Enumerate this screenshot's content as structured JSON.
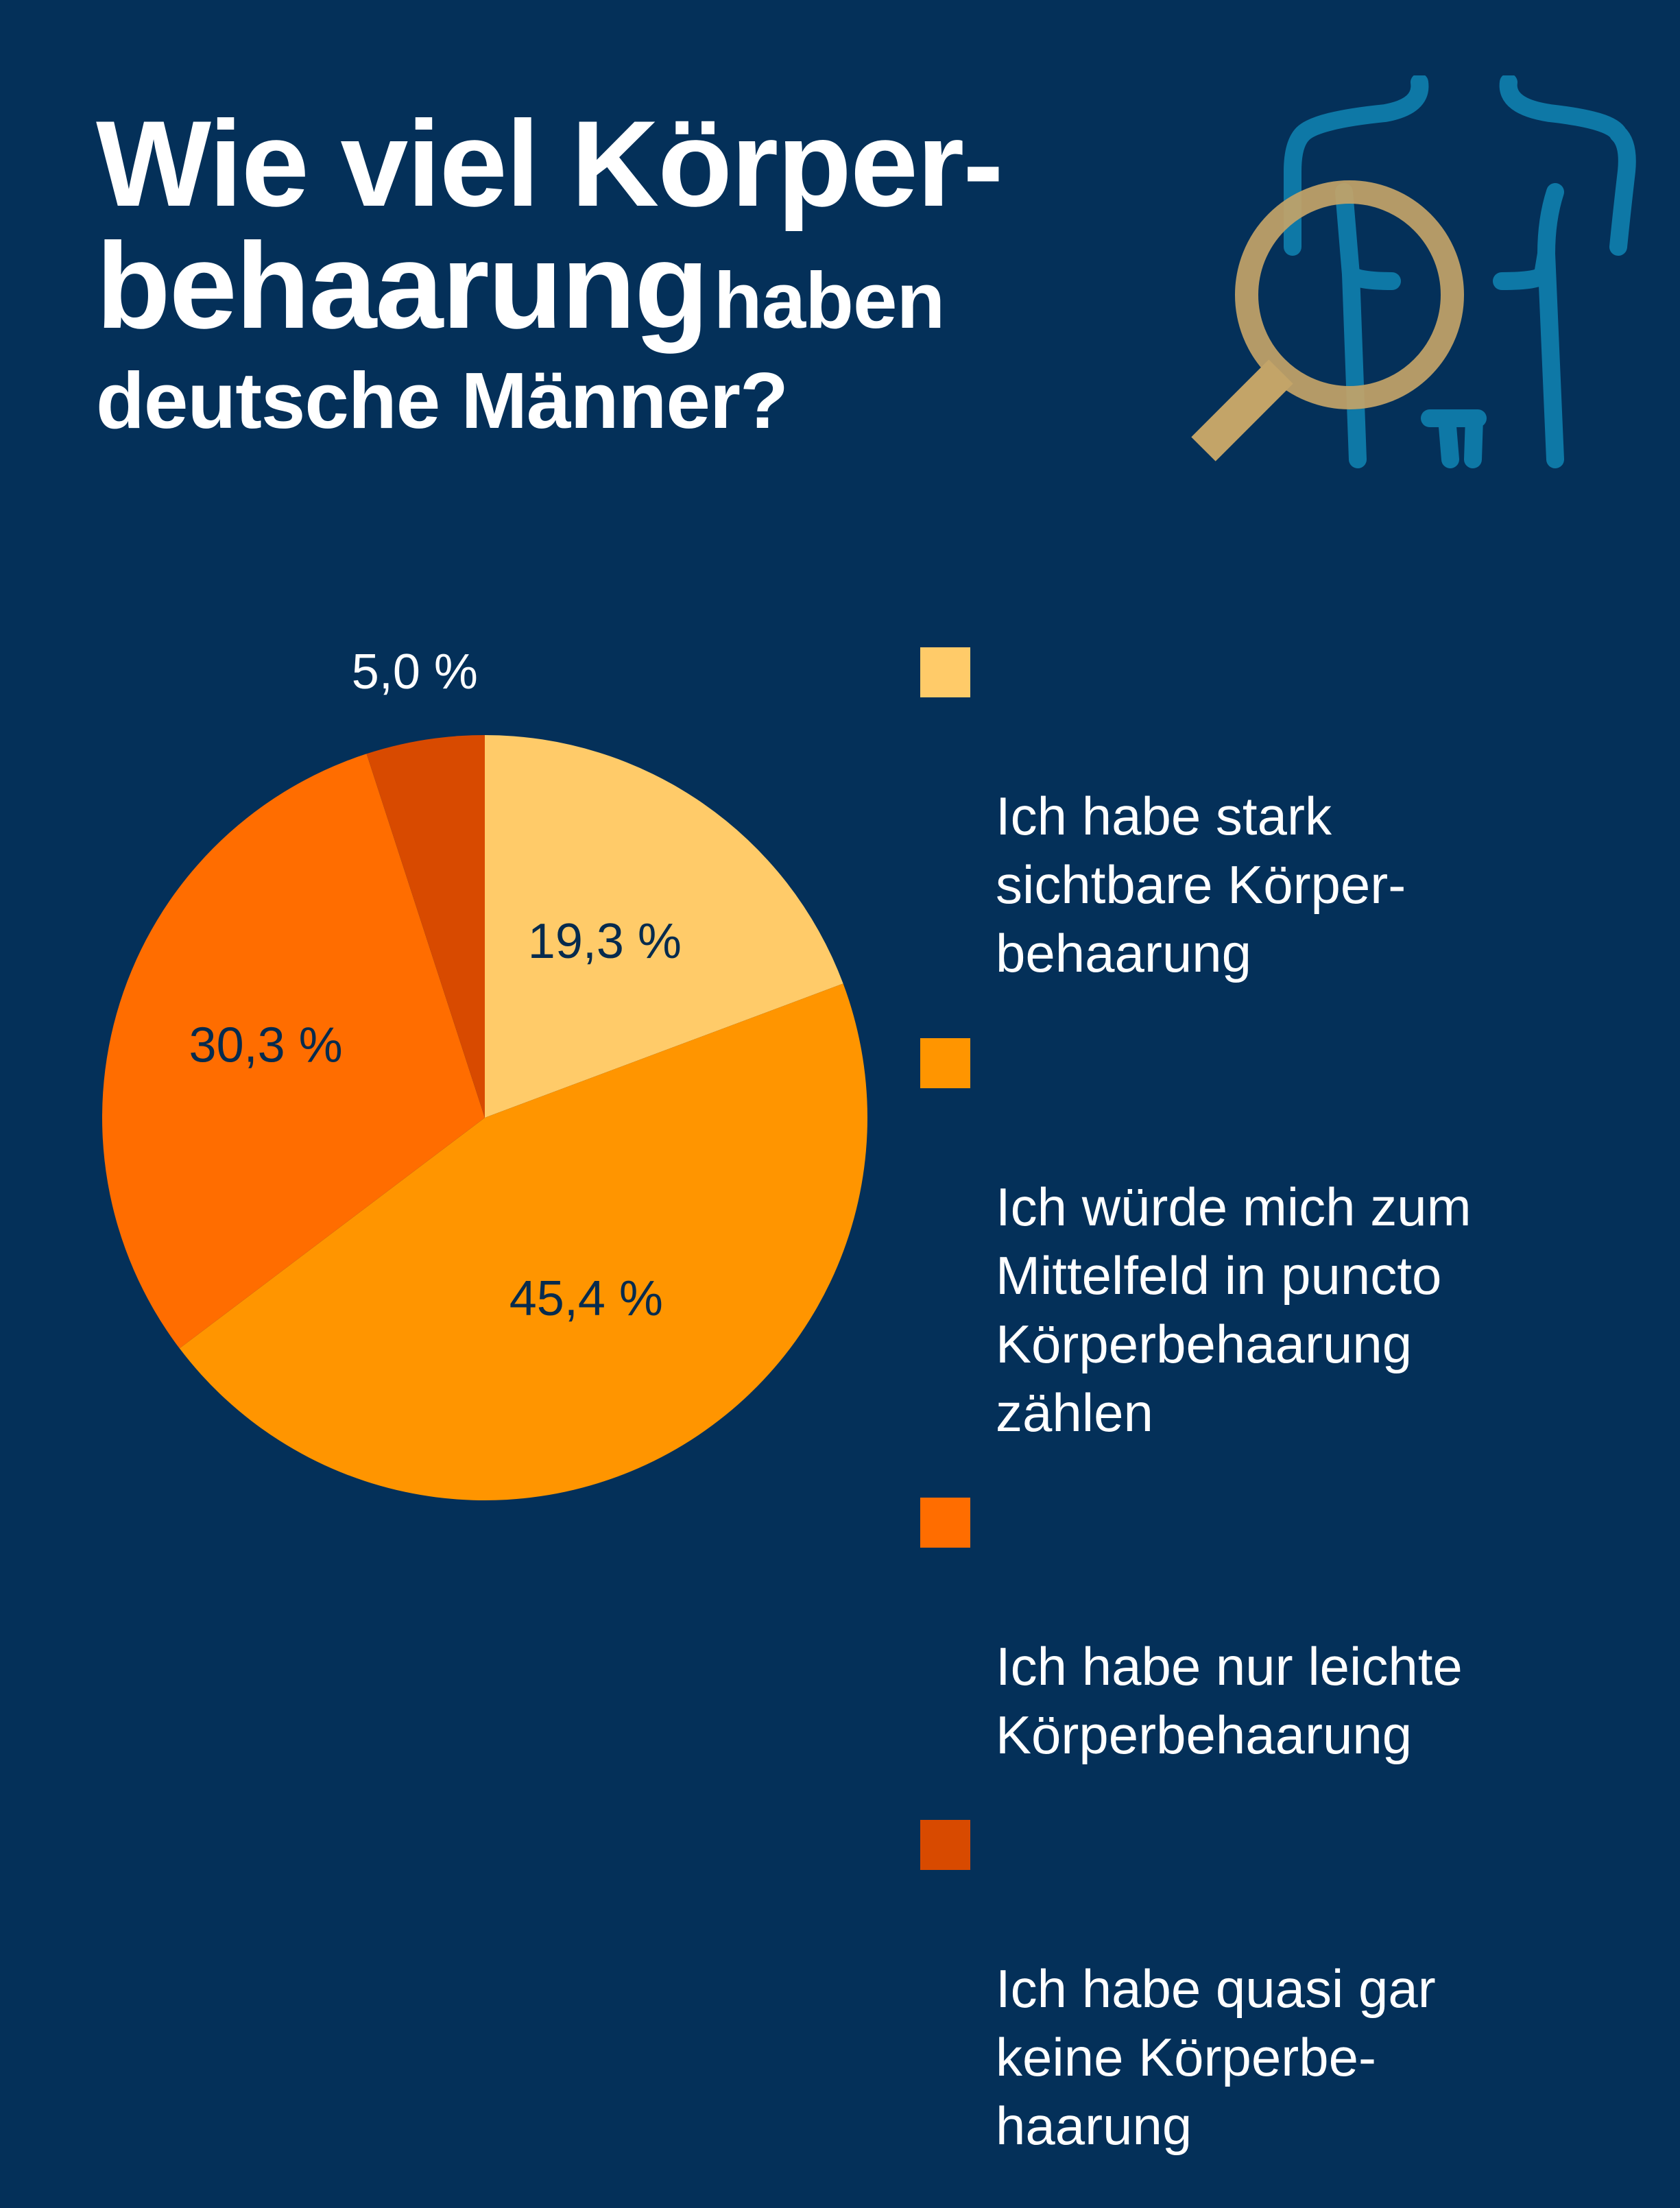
{
  "header": {
    "title_line1": "Wie viel Körper-",
    "title_line2_big": "behaarung",
    "title_line2_small": "haben",
    "title_line3": "deutsche Männer?"
  },
  "illustration": {
    "icon": "magnifier-over-body-icon",
    "body_color": "#0e78a6",
    "magnifier_color": "#c3a468"
  },
  "colors": {
    "background": "#043059",
    "label_dark": "#062b4e",
    "label_light": "#ffffff"
  },
  "chart_data": {
    "type": "pie",
    "title": "",
    "start": "top, clockwise",
    "slices": [
      {
        "label": "Ich habe stark\nsichtbare Körper-\nbehaarung",
        "value": 19.3,
        "value_label": "19,3 %",
        "color": "#ffcb69"
      },
      {
        "label": "Ich würde mich zum\nMittelfeld in puncto\nKörperbehaarung\nzählen",
        "value": 45.4,
        "value_label": "45,4 %",
        "color": "#ff9500"
      },
      {
        "label": "Ich habe nur leichte\nKörperbehaarung",
        "value": 30.3,
        "value_label": "30,3 %",
        "color": "#ff6d00"
      },
      {
        "label": "Ich habe quasi gar\nkeine Körperbe-\nhaarung",
        "value": 5.0,
        "value_label": "5,0 %",
        "color": "#d84a00"
      }
    ],
    "legend": "right"
  }
}
